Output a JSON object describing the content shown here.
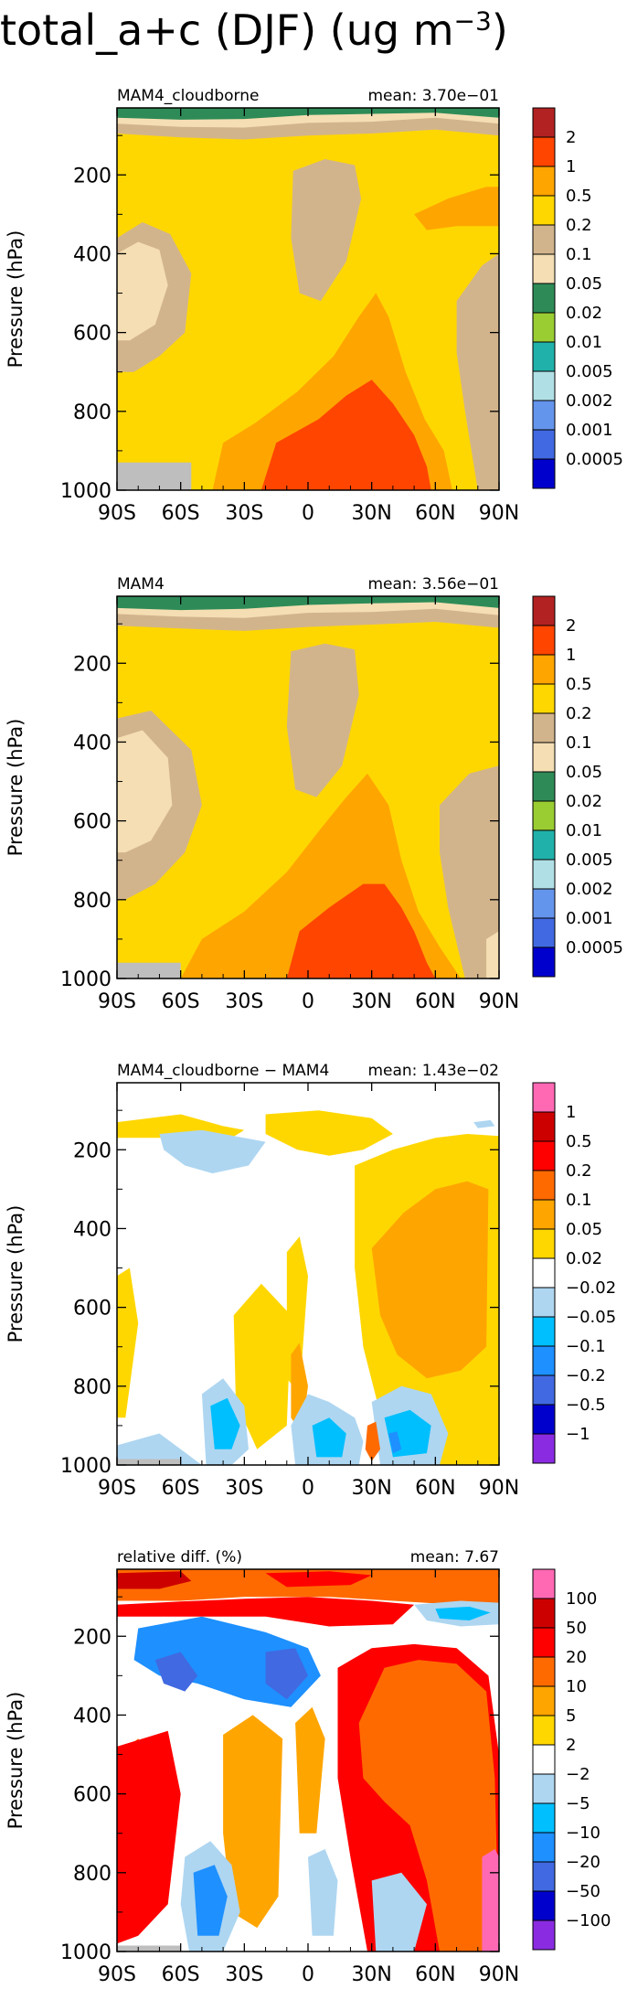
{
  "figure": {
    "title_prefix": "total_a+c (DJF) (ug m",
    "title_exponent": "−3",
    "title_suffix": ")"
  },
  "chart_data": [
    {
      "type": "heatmap",
      "title": "MAM4_cloudborne",
      "mean_label": "mean:",
      "mean_value": "3.70e−01",
      "ylabel": "Pressure (hPa)",
      "xlabel": "",
      "x_ticks": [
        "90S",
        "60S",
        "30S",
        "0",
        "30N",
        "60N",
        "90N"
      ],
      "y_ticks": [
        "200",
        "400",
        "600",
        "800",
        "1000"
      ],
      "xlim": [
        -90,
        90
      ],
      "ylim": [
        1000,
        30
      ],
      "colorbar_labels": [
        "2",
        "1",
        "0.5",
        "0.2",
        "0.1",
        "0.05",
        "0.02",
        "0.01",
        "0.005",
        "0.002",
        "0.001",
        "0.0005"
      ],
      "colorbar_colors": [
        "#b22222",
        "#ff4500",
        "#ffa500",
        "#ffd700",
        "#d2b48c",
        "#f5deb3",
        "#2e8b57",
        "#9acd32",
        "#20b2aa",
        "#b0e0e6",
        "#6495ed",
        "#4169e1",
        "#0000cd"
      ]
    },
    {
      "type": "heatmap",
      "title": "MAM4",
      "mean_label": "mean:",
      "mean_value": "3.56e−01",
      "ylabel": "Pressure (hPa)",
      "xlabel": "",
      "x_ticks": [
        "90S",
        "60S",
        "30S",
        "0",
        "30N",
        "60N",
        "90N"
      ],
      "y_ticks": [
        "200",
        "400",
        "600",
        "800",
        "1000"
      ],
      "xlim": [
        -90,
        90
      ],
      "ylim": [
        1000,
        30
      ],
      "colorbar_labels": [
        "2",
        "1",
        "0.5",
        "0.2",
        "0.1",
        "0.05",
        "0.02",
        "0.01",
        "0.005",
        "0.002",
        "0.001",
        "0.0005"
      ],
      "colorbar_colors": [
        "#b22222",
        "#ff4500",
        "#ffa500",
        "#ffd700",
        "#d2b48c",
        "#f5deb3",
        "#2e8b57",
        "#9acd32",
        "#20b2aa",
        "#b0e0e6",
        "#6495ed",
        "#4169e1",
        "#0000cd"
      ]
    },
    {
      "type": "heatmap",
      "title": "MAM4_cloudborne − MAM4",
      "mean_label": "mean:",
      "mean_value": "1.43e−02",
      "ylabel": "Pressure (hPa)",
      "xlabel": "",
      "x_ticks": [
        "90S",
        "60S",
        "30S",
        "0",
        "30N",
        "60N",
        "90N"
      ],
      "y_ticks": [
        "200",
        "400",
        "600",
        "800",
        "1000"
      ],
      "xlim": [
        -90,
        90
      ],
      "ylim": [
        1000,
        30
      ],
      "colorbar_labels": [
        "1",
        "0.5",
        "0.2",
        "0.1",
        "0.05",
        "0.02",
        "−0.02",
        "−0.05",
        "−0.1",
        "−0.2",
        "−0.5",
        "−1"
      ],
      "colorbar_colors": [
        "#ff69b4",
        "#cd0000",
        "#ff0000",
        "#ff6a00",
        "#ffa500",
        "#ffd700",
        "#ffffff",
        "#aed6f1",
        "#00bfff",
        "#1e90ff",
        "#4169e1",
        "#0000cd",
        "#8a2be2"
      ]
    },
    {
      "type": "heatmap",
      "title": "relative diff. (%)",
      "mean_label": "mean:",
      "mean_value": "7.67",
      "ylabel": "Pressure (hPa)",
      "xlabel": "",
      "x_ticks": [
        "90S",
        "60S",
        "30S",
        "0",
        "30N",
        "60N",
        "90N"
      ],
      "y_ticks": [
        "200",
        "400",
        "600",
        "800",
        "1000"
      ],
      "xlim": [
        -90,
        90
      ],
      "ylim": [
        1000,
        30
      ],
      "colorbar_labels": [
        "100",
        "50",
        "20",
        "10",
        "5",
        "2",
        "−2",
        "−5",
        "−10",
        "−20",
        "−50",
        "−100"
      ],
      "colorbar_colors": [
        "#ff69b4",
        "#cd0000",
        "#ff0000",
        "#ff6a00",
        "#ffa500",
        "#ffd700",
        "#ffffff",
        "#aed6f1",
        "#00bfff",
        "#1e90ff",
        "#4169e1",
        "#0000cd",
        "#8a2be2"
      ]
    }
  ]
}
